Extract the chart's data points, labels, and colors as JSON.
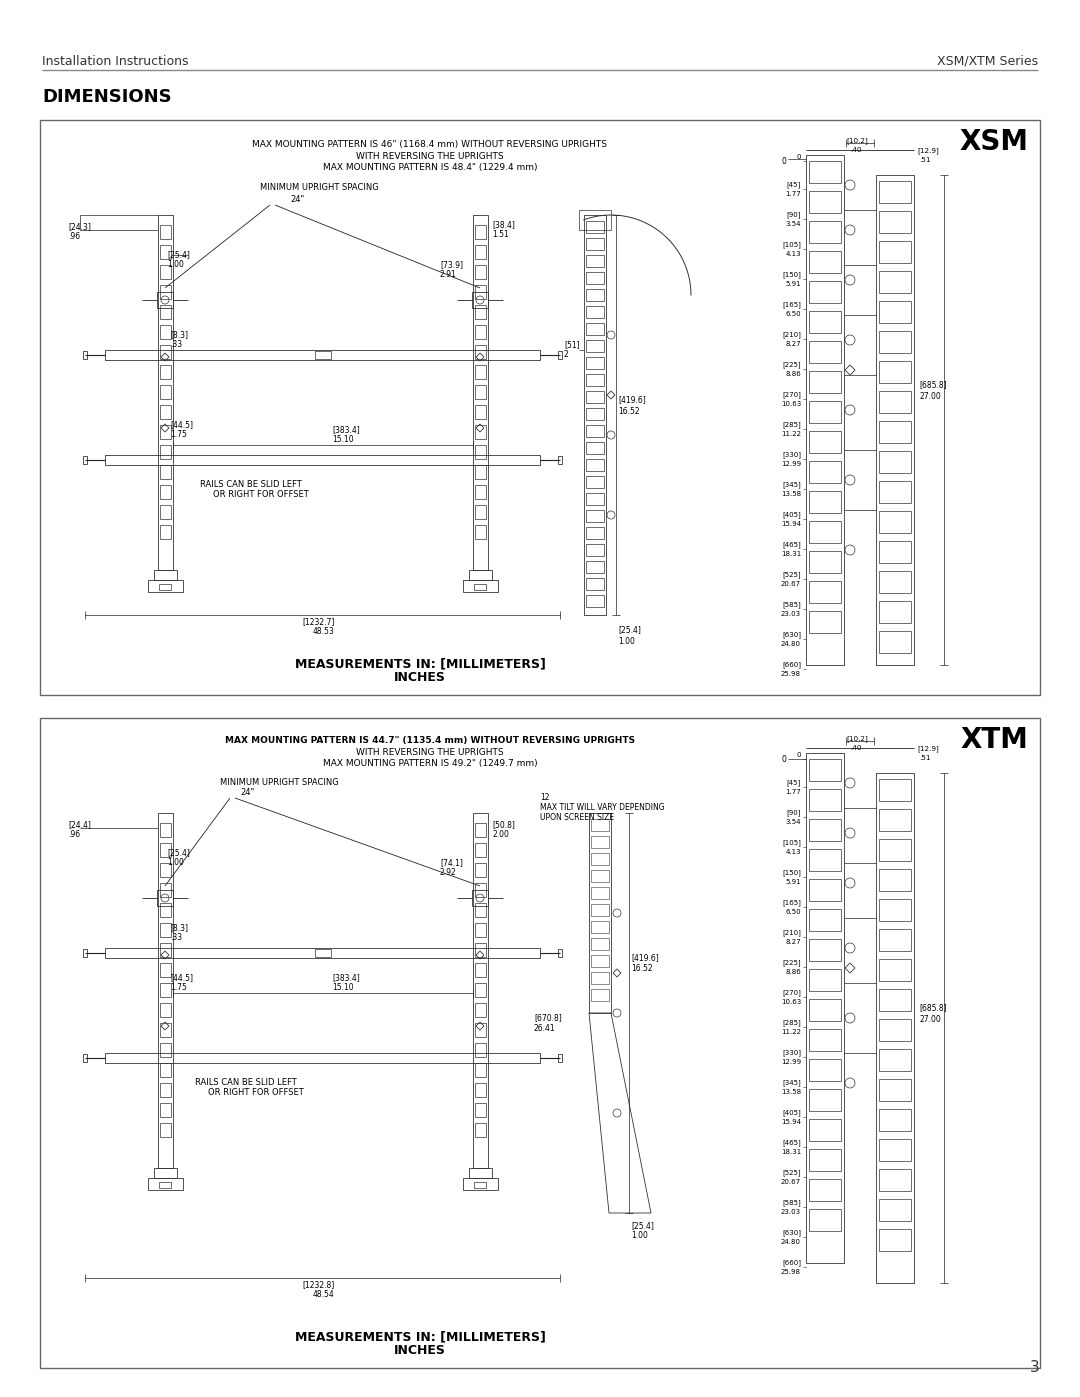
{
  "page_title_left": "Installation Instructions",
  "page_title_right": "XSM/XTM Series",
  "section_title": "DIMENSIONS",
  "page_number": "3",
  "bg": "#ffffff",
  "border_color": "#555555",
  "draw_color": "#333333",
  "xsm_label": "XSM",
  "xtm_label": "XTM",
  "xsm_text1": "MAX MOUNTING PATTERN IS 46\" (1168.4 mm) WITHOUT REVERSING UPRIGHTS",
  "xsm_text2": "WITH REVERSING THE UPRIGHTS",
  "xsm_text3": "MAX MOUNTING PATTERN IS 48.4\" (1229.4 mm)",
  "xtm_text1": "MAX MOUNTING PATTERN IS 44.7\" (1135.4 mm) WITHOUT REVERSING UPRIGHTS",
  "xtm_text2": "WITH REVERSING THE UPRIGHTS",
  "xtm_text3": "MAX MOUNTING PATTERN IS 49.2\" (1249.7 mm)",
  "meas_text1": "MEASUREMENTS IN: [MILLIMETERS]",
  "meas_text2": "INCHES",
  "right_dims": [
    [
      "0",
      ""
    ],
    [
      "[45]",
      "1.77"
    ],
    [
      "[90]",
      "3.54"
    ],
    [
      "[105]",
      "4.13"
    ],
    [
      "[150]",
      "5.91"
    ],
    [
      "[165]",
      "6.50"
    ],
    [
      "[210]",
      "8.27"
    ],
    [
      "[225]",
      "8.86"
    ],
    [
      "[270]",
      "10.63"
    ],
    [
      "[285]",
      "11.22"
    ],
    [
      "[330]",
      "12.99"
    ],
    [
      "[345]",
      "13.58"
    ],
    [
      "[405]",
      "15.94"
    ],
    [
      "[465]",
      "18.31"
    ],
    [
      "[525]",
      "20.67"
    ],
    [
      "[585]",
      "23.03"
    ],
    [
      "[630]",
      "24.80"
    ],
    [
      "[660]",
      "25.98"
    ]
  ]
}
